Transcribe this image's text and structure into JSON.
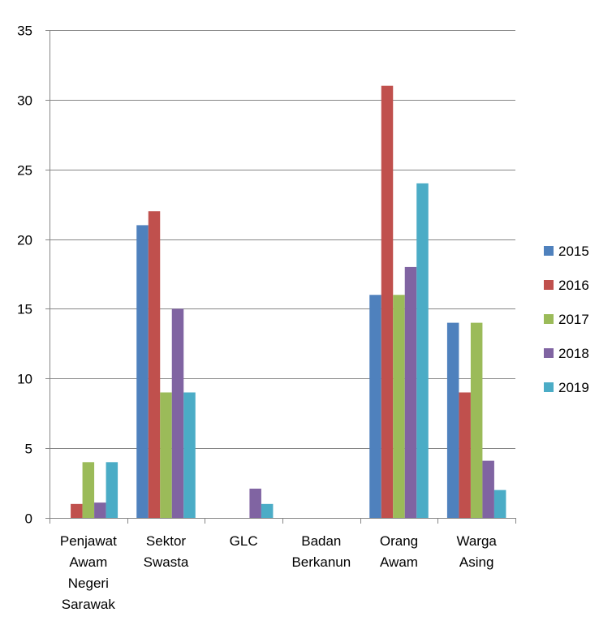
{
  "chart_data": {
    "type": "bar",
    "title": "",
    "xlabel": "",
    "ylabel": "",
    "ylim": [
      0,
      35
    ],
    "y_ticks": [
      0,
      5,
      10,
      15,
      20,
      25,
      30,
      35
    ],
    "grid": "horizontal",
    "legend_position": "right",
    "categories": [
      "Penjawat Awam Negeri Sarawak",
      "Sektor Swasta",
      "GLC",
      "Badan Berkanun",
      "Orang Awam",
      "Warga Asing"
    ],
    "category_label_lines": [
      [
        "Penjawat",
        "Awam",
        "Negeri",
        "Sarawak"
      ],
      [
        "Sektor",
        "Swasta"
      ],
      [
        "GLC"
      ],
      [
        "Badan",
        "Berkanun"
      ],
      [
        "Orang",
        "Awam"
      ],
      [
        "Warga",
        "Asing"
      ]
    ],
    "series": [
      {
        "name": "2015",
        "color": "#4F81BD",
        "values": [
          0,
          21,
          0,
          0,
          16,
          14
        ]
      },
      {
        "name": "2016",
        "color": "#C0504D",
        "values": [
          1,
          22,
          0,
          0,
          31,
          9
        ]
      },
      {
        "name": "2017",
        "color": "#9BBB59",
        "values": [
          4,
          9,
          0,
          0,
          16,
          14
        ]
      },
      {
        "name": "2018",
        "color": "#8064A2",
        "values": [
          1.1,
          15,
          2.1,
          0,
          18,
          4.1
        ]
      },
      {
        "name": "2019",
        "color": "#4BACC6",
        "values": [
          4,
          9,
          1,
          0,
          24,
          2
        ]
      }
    ]
  }
}
